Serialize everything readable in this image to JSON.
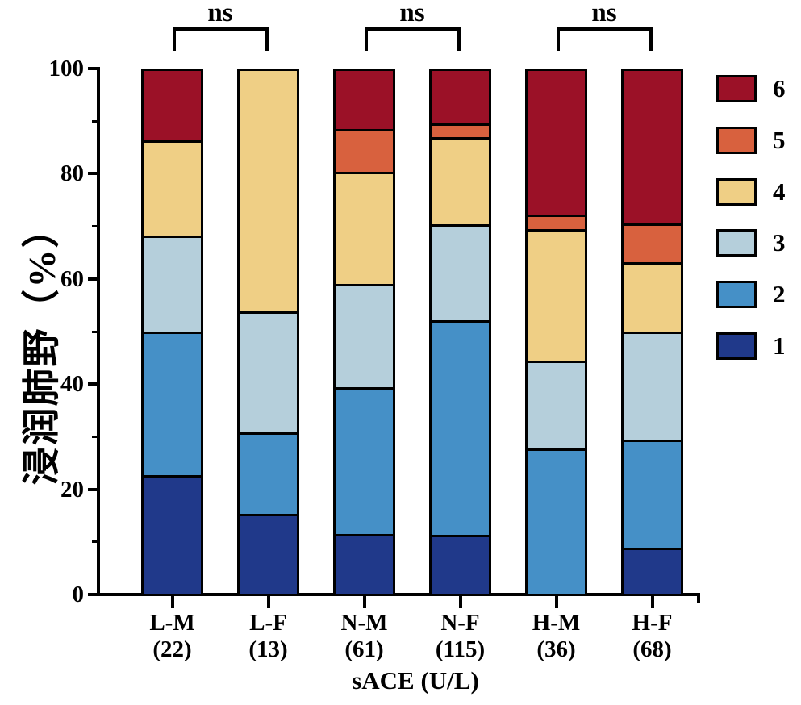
{
  "chart_data": {
    "type": "bar",
    "stacked": true,
    "title": "",
    "xlabel": "sACE (U/L)",
    "ylabel": "浸润肺野（%）",
    "ylim": [
      0,
      100
    ],
    "yticks_major": [
      0,
      20,
      40,
      60,
      80,
      100
    ],
    "yticks_minor": [
      10,
      30,
      50,
      70,
      90
    ],
    "grid": false,
    "categories": [
      "L-M",
      "L-F",
      "N-M",
      "N-F",
      "H-M",
      "H-F"
    ],
    "category_counts": [
      "(22)",
      "(13)",
      "(61)",
      "(115)",
      "(36)",
      "(68)"
    ],
    "series": [
      {
        "name": "1",
        "color": "#20398A",
        "values": [
          22.73,
          15.38,
          11.48,
          11.3,
          0,
          8.82
        ]
      },
      {
        "name": "2",
        "color": "#4590C7",
        "values": [
          27.27,
          15.38,
          27.87,
          40.87,
          27.78,
          20.59
        ]
      },
      {
        "name": "3",
        "color": "#B5CFDB",
        "values": [
          18.18,
          23.08,
          19.67,
          18.26,
          16.67,
          20.59
        ]
      },
      {
        "name": "4",
        "color": "#EFCF85",
        "values": [
          18.18,
          46.15,
          21.31,
          16.52,
          25.0,
          13.24
        ]
      },
      {
        "name": "5",
        "color": "#D8613E",
        "values": [
          0,
          0,
          8.2,
          2.61,
          2.78,
          7.35
        ]
      },
      {
        "name": "6",
        "color": "#9B1127",
        "values": [
          13.64,
          0,
          11.48,
          10.43,
          27.78,
          29.41
        ]
      }
    ],
    "legend": {
      "position": "right",
      "order_top_to_bottom": [
        "6",
        "5",
        "4",
        "3",
        "2",
        "1"
      ]
    },
    "annotations": [
      {
        "label": "ns",
        "between": [
          "L-M",
          "L-F"
        ]
      },
      {
        "label": "ns",
        "between": [
          "N-M",
          "N-F"
        ]
      },
      {
        "label": "ns",
        "between": [
          "H-M",
          "H-F"
        ]
      }
    ],
    "axis_color": "#000000",
    "background_color": "#FFFFFF"
  }
}
